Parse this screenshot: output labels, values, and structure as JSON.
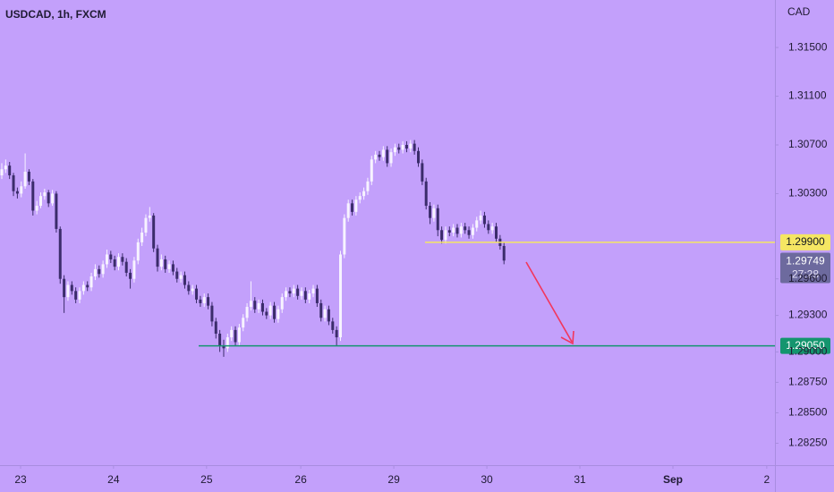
{
  "chart_data": {
    "type": "candlestick",
    "title": "USDCAD, 1h, FXCM",
    "currency": "CAD",
    "up_color": "#f7f3ff",
    "down_color": "#3b2c6b",
    "open": [
      1.3045,
      1.305,
      1.3053,
      1.3045,
      1.3032,
      1.303,
      1.3036,
      1.3048,
      1.304,
      1.3016,
      1.302,
      1.3028,
      1.3031,
      1.3022,
      1.303,
      1.3001,
      1.296,
      1.2945,
      1.2955,
      1.295,
      1.2943,
      1.295,
      1.2955,
      1.2953,
      1.2962,
      1.2968,
      1.2964,
      1.2972,
      1.298,
      1.2976,
      1.297,
      1.2978,
      1.2974,
      1.2965,
      1.296,
      1.2975,
      1.299,
      1.2998,
      1.301,
      1.3012,
      1.2985,
      1.297,
      1.2976,
      1.2968,
      1.2972,
      1.2966,
      1.296,
      1.2963,
      1.2955,
      1.295,
      1.2952,
      1.2943,
      1.294,
      1.2945,
      1.2938,
      1.2925,
      1.2915,
      1.2905,
      1.2903,
      1.2912,
      1.2918,
      1.2908,
      1.292,
      1.2928,
      1.2937,
      1.2942,
      1.2935,
      1.294,
      1.2933,
      1.293,
      1.2938,
      1.2927,
      1.2935,
      1.2945,
      1.295,
      1.2948,
      1.2952,
      1.2946,
      1.295,
      1.2943,
      1.2948,
      1.2952,
      1.294,
      1.2928,
      1.2935,
      1.2925,
      1.2918,
      1.2912,
      1.298,
      1.301,
      1.3022,
      1.3015,
      1.3025,
      1.3028,
      1.3032,
      1.304,
      1.3058,
      1.3062,
      1.306,
      1.3066,
      1.3055,
      1.3064,
      1.3068,
      1.3066,
      1.307,
      1.3067,
      1.3071,
      1.3065,
      1.3055,
      1.304,
      1.302,
      1.301,
      1.3018,
      1.3,
      1.2992,
      1.3,
      1.2998,
      1.3002,
      1.2997,
      1.3003,
      1.3,
      1.2996,
      1.3002,
      1.3008,
      1.3012,
      1.3005,
      1.3,
      1.3003,
      1.2993,
      1.2987
    ],
    "high": [
      1.3055,
      1.3058,
      1.3056,
      1.3047,
      1.3035,
      1.304,
      1.3063,
      1.305,
      1.3042,
      1.3024,
      1.3031,
      1.3034,
      1.3033,
      1.3033,
      1.3032,
      1.3003,
      1.2963,
      1.2958,
      1.2958,
      1.2953,
      1.2953,
      1.2958,
      1.2958,
      1.2965,
      1.2972,
      1.2971,
      1.2975,
      1.2984,
      1.2983,
      1.2979,
      1.2981,
      1.2981,
      1.2977,
      1.2968,
      1.2978,
      1.2993,
      1.3002,
      1.3013,
      1.3019,
      1.3014,
      1.2988,
      1.298,
      1.2979,
      1.2975,
      1.2975,
      1.2969,
      1.2966,
      1.2966,
      1.2958,
      1.2955,
      1.2955,
      1.2946,
      1.2948,
      1.2948,
      1.2941,
      1.2928,
      1.2918,
      1.291,
      1.2915,
      1.2921,
      1.2921,
      1.2923,
      1.2931,
      1.294,
      1.2958,
      1.2945,
      1.2943,
      1.2943,
      1.2936,
      1.2941,
      1.2941,
      1.2938,
      1.2948,
      1.2953,
      1.2953,
      1.2955,
      1.2955,
      1.2953,
      1.2953,
      1.2951,
      1.2955,
      1.2955,
      1.2943,
      1.2938,
      1.2938,
      1.2928,
      1.2921,
      1.2983,
      1.3013,
      1.3025,
      1.3025,
      1.3028,
      1.3031,
      1.3035,
      1.3043,
      1.3061,
      1.3065,
      1.3065,
      1.3069,
      1.3069,
      1.3067,
      1.3071,
      1.3071,
      1.3073,
      1.3073,
      1.3074,
      1.3074,
      1.3068,
      1.3058,
      1.3043,
      1.3023,
      1.3021,
      1.3021,
      1.3003,
      1.3003,
      1.3003,
      1.3005,
      1.3005,
      1.3006,
      1.3006,
      1.3003,
      1.3005,
      1.3011,
      1.3016,
      1.3015,
      1.3008,
      1.3006,
      1.3006,
      1.2996,
      1.299
    ],
    "low": [
      1.3042,
      1.3047,
      1.3042,
      1.3028,
      1.3026,
      1.3027,
      1.3034,
      1.3037,
      1.3012,
      1.3013,
      1.3018,
      1.3025,
      1.3019,
      1.302,
      1.2998,
      1.2956,
      1.2932,
      1.2942,
      1.2947,
      1.294,
      1.294,
      1.2947,
      1.295,
      1.295,
      1.2959,
      1.2961,
      1.2961,
      1.2969,
      1.2973,
      1.2967,
      1.2967,
      1.2971,
      1.2962,
      1.2952,
      1.2957,
      1.2972,
      1.2987,
      1.2995,
      1.3007,
      1.2982,
      1.2966,
      1.2967,
      1.2965,
      1.2965,
      1.2963,
      1.2957,
      1.2957,
      1.2952,
      1.2947,
      1.2947,
      1.294,
      1.2937,
      1.2937,
      1.2935,
      1.2921,
      1.2911,
      1.29,
      1.2896,
      1.29,
      1.2909,
      1.2905,
      1.2905,
      1.2917,
      1.2925,
      1.2934,
      1.2932,
      1.2932,
      1.293,
      1.2927,
      1.2927,
      1.2924,
      1.2924,
      1.2932,
      1.2942,
      1.2945,
      1.2945,
      1.2943,
      1.2943,
      1.294,
      1.294,
      1.2945,
      1.2937,
      1.2925,
      1.2925,
      1.2922,
      1.2915,
      1.2905,
      1.2909,
      1.2977,
      1.3007,
      1.3012,
      1.3012,
      1.3022,
      1.3025,
      1.3029,
      1.3037,
      1.3055,
      1.3057,
      1.3057,
      1.3052,
      1.3052,
      1.3061,
      1.3063,
      1.3063,
      1.3064,
      1.3064,
      1.3062,
      1.3052,
      1.3037,
      1.3017,
      1.3005,
      1.3007,
      1.2995,
      1.2989,
      1.2989,
      1.2995,
      1.2995,
      1.2994,
      1.2994,
      1.2997,
      1.2993,
      1.2993,
      1.2999,
      1.3005,
      1.3002,
      1.2997,
      1.2997,
      1.299,
      1.2984,
      1.2972
    ],
    "close": [
      1.305,
      1.3053,
      1.3045,
      1.3032,
      1.303,
      1.3036,
      1.3048,
      1.304,
      1.3016,
      1.302,
      1.3028,
      1.3031,
      1.3022,
      1.303,
      1.3001,
      1.296,
      1.2945,
      1.2955,
      1.295,
      1.2943,
      1.295,
      1.2955,
      1.2953,
      1.2962,
      1.2968,
      1.2964,
      1.2972,
      1.298,
      1.2976,
      1.297,
      1.2978,
      1.2974,
      1.2965,
      1.296,
      1.2975,
      1.299,
      1.2998,
      1.301,
      1.3012,
      1.2985,
      1.297,
      1.2976,
      1.2968,
      1.2972,
      1.2966,
      1.296,
      1.2963,
      1.2955,
      1.295,
      1.2952,
      1.2943,
      1.294,
      1.2945,
      1.2938,
      1.2925,
      1.2915,
      1.2905,
      1.2903,
      1.2912,
      1.2918,
      1.2908,
      1.292,
      1.2928,
      1.2937,
      1.2942,
      1.2935,
      1.294,
      1.2933,
      1.293,
      1.2938,
      1.2927,
      1.2935,
      1.2945,
      1.295,
      1.2948,
      1.2952,
      1.2946,
      1.295,
      1.2943,
      1.2948,
      1.2952,
      1.294,
      1.2928,
      1.2935,
      1.2925,
      1.2918,
      1.2912,
      1.298,
      1.301,
      1.3022,
      1.3015,
      1.3025,
      1.3028,
      1.3032,
      1.304,
      1.3058,
      1.3062,
      1.306,
      1.3066,
      1.3055,
      1.3064,
      1.3068,
      1.3066,
      1.307,
      1.3067,
      1.3071,
      1.3065,
      1.3055,
      1.304,
      1.302,
      1.301,
      1.3018,
      1.3,
      1.2992,
      1.3,
      1.2998,
      1.3002,
      1.2997,
      1.3003,
      1.3,
      1.2996,
      1.3002,
      1.3008,
      1.3012,
      1.3005,
      1.3,
      1.3003,
      1.2993,
      1.2987,
      1.2975
    ],
    "xlim": [
      -0.46,
      198.6
    ],
    "xticks": [
      {
        "value": 4.83,
        "label": "23"
      },
      {
        "value": 28.7,
        "label": "24"
      },
      {
        "value": 52.6,
        "label": "25"
      },
      {
        "value": 76.8,
        "label": "26"
      },
      {
        "value": 100.7,
        "label": "29"
      },
      {
        "value": 124.6,
        "label": "30"
      },
      {
        "value": 148.5,
        "label": "31"
      },
      {
        "value": 172.4,
        "label": "Sep"
      },
      {
        "value": 196.5,
        "label": "2"
      }
    ],
    "ylim": [
      1.2807,
      1.3189
    ],
    "yticks": [
      {
        "value": 1.315,
        "label": "1.31500"
      },
      {
        "value": 1.311,
        "label": "1.31100"
      },
      {
        "value": 1.307,
        "label": "1.30700"
      },
      {
        "value": 1.303,
        "label": "1.30300"
      },
      {
        "value": 1.296,
        "label": "1.29600"
      },
      {
        "value": 1.293,
        "label": "1.29300"
      },
      {
        "value": 1.29,
        "label": "1.29000"
      },
      {
        "value": 1.2875,
        "label": "1.28750"
      },
      {
        "value": 1.285,
        "label": "1.28500"
      },
      {
        "value": 1.2825,
        "label": "1.28250"
      }
    ],
    "levels": [
      {
        "price": {
          "value": 1.299,
          "label": "1.29900"
        },
        "color": "#f5e663"
      },
      {
        "price": {
          "value": 1.2905,
          "label": "1.29050"
        },
        "color": "#14956e"
      }
    ],
    "last_price": 1.29749,
    "countdown": "27:28"
  }
}
